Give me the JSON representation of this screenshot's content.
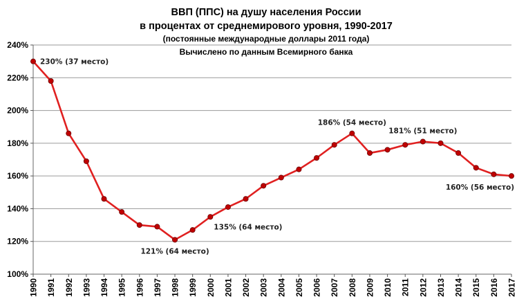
{
  "chart_data": {
    "type": "line",
    "title": [
      "ВВП (ППС) на душу населения России",
      "в процентах от среднемирового уровня, 1990-2017",
      "(постоянные международные доллары 2011 года)",
      "Вычислено по данным Всемирного банка"
    ],
    "xlabel": "",
    "ylabel": "",
    "x": [
      1990,
      1991,
      1992,
      1993,
      1994,
      1995,
      1996,
      1997,
      1998,
      1999,
      2000,
      2001,
      2002,
      2003,
      2004,
      2005,
      2006,
      2007,
      2008,
      2009,
      2010,
      2011,
      2012,
      2013,
      2014,
      2015,
      2016,
      2017
    ],
    "x_tick_labels": [
      "1990",
      "1991",
      "1992",
      "1993",
      "1994",
      "1995",
      "1996",
      "1997",
      "1998",
      "1999",
      "2000",
      "2001",
      "2002",
      "2003",
      "2004",
      "2005",
      "2006",
      "2007",
      "2008",
      "2009",
      "2010",
      "2011",
      "2012",
      "2013",
      "2014",
      "2015",
      "2016",
      "2017"
    ],
    "series": [
      {
        "values": [
          230,
          218,
          186,
          169,
          146,
          138,
          130,
          129,
          121,
          127,
          135,
          141,
          146,
          154,
          159,
          164,
          171,
          179,
          186,
          174,
          176,
          179,
          181,
          180,
          174,
          165,
          161,
          160
        ],
        "color": "#e02020",
        "marker_color": "#c00000"
      }
    ],
    "ylim": [
      100,
      240
    ],
    "y_ticks": [
      100,
      120,
      140,
      160,
      180,
      200,
      220,
      240
    ],
    "y_tick_labels": [
      "100%",
      "120%",
      "140%",
      "160%",
      "180%",
      "200%",
      "220%",
      "240%"
    ],
    "grid": true,
    "annotations": [
      {
        "x": 1990,
        "text": "230% (37 место)",
        "anchor": "right"
      },
      {
        "x": 1998,
        "text": "121% (64 место)",
        "anchor": "below"
      },
      {
        "x": 2000,
        "text": "135% (64 место)",
        "anchor": "below-right"
      },
      {
        "x": 2008,
        "text": "186% (54 место)",
        "anchor": "above"
      },
      {
        "x": 2012,
        "text": "181% (51 место)",
        "anchor": "above"
      },
      {
        "x": 2017,
        "text": "160% (56 место)",
        "anchor": "below-left"
      }
    ]
  }
}
